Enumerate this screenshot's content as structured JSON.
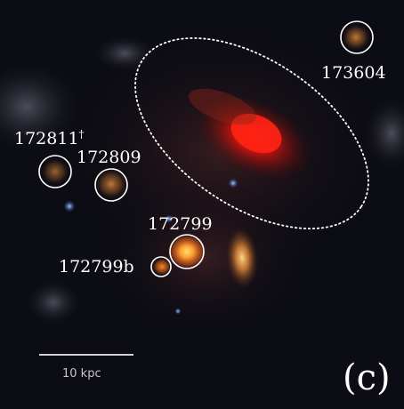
{
  "objects": [
    {
      "id": "172811",
      "mark": "†"
    },
    {
      "id": "172809"
    },
    {
      "id": "172799"
    },
    {
      "id": "172799b"
    },
    {
      "id": "173604"
    }
  ],
  "scale_bar": {
    "label": "10 kpc"
  },
  "panel_label": "(c)"
}
